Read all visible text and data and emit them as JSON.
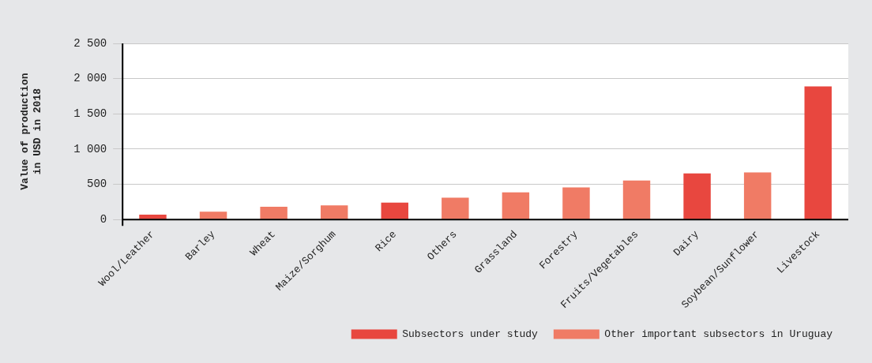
{
  "chart_data": {
    "type": "bar",
    "ylabel": "Value of production\nin USD in 2018",
    "categories": [
      "Wool/Leather",
      "Barley",
      "Wheat",
      "Maize/Sorghum",
      "Rice",
      "Others",
      "Grassland",
      "Forestry",
      "Fruits/Vegetables",
      "Dairy",
      "Soybean/Sunflower",
      "Livestock"
    ],
    "series": [
      {
        "name": "Subsectors under study",
        "color": "#e8473f",
        "values": [
          70,
          null,
          null,
          null,
          240,
          null,
          null,
          null,
          null,
          655,
          null,
          1890
        ]
      },
      {
        "name": "Other important subsectors in Uruguay",
        "color": "#f07b65",
        "values": [
          null,
          110,
          180,
          200,
          null,
          310,
          385,
          455,
          555,
          null,
          670,
          null
        ]
      }
    ],
    "ylim": [
      0,
      2500
    ],
    "yticks": [
      {
        "value": 0,
        "label": "0"
      },
      {
        "value": 500,
        "label": "500"
      },
      {
        "value": 1000,
        "label": "1 000"
      },
      {
        "value": 1500,
        "label": "1 500"
      },
      {
        "value": 2000,
        "label": "2 000"
      },
      {
        "value": 2500,
        "label": "2 500"
      }
    ],
    "grid": "y",
    "legend": "bottom right"
  }
}
